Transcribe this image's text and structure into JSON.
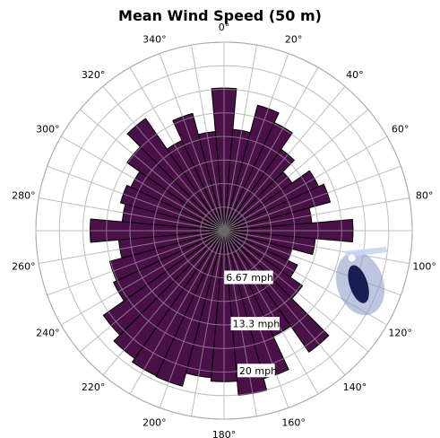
{
  "chart_data": {
    "type": "polar-bar",
    "title": "Mean Wind Speed (50 m)",
    "direction_labels": [
      "0°",
      "20°",
      "40°",
      "60°",
      "80°",
      "100°",
      "120°",
      "140°",
      "160°",
      "180°",
      "200°",
      "220°",
      "240°",
      "260°",
      "280°",
      "300°",
      "320°",
      "340°"
    ],
    "radial_axis": {
      "unit": "mph",
      "max": 26.7,
      "rings": 8,
      "labels": [
        "6.67 mph",
        "13.3 mph",
        "20 mph"
      ],
      "label_values": [
        6.67,
        13.3,
        20
      ]
    },
    "sector_width_deg": 10,
    "sectors": [
      {
        "dir": 0,
        "value": 20.2
      },
      {
        "dir": 10,
        "value": 14.4
      },
      {
        "dir": 20,
        "value": 18.4
      },
      {
        "dir": 30,
        "value": 16.9
      },
      {
        "dir": 40,
        "value": 14.1
      },
      {
        "dir": 50,
        "value": 11.8
      },
      {
        "dir": 60,
        "value": 14.8
      },
      {
        "dir": 70,
        "value": 15.6
      },
      {
        "dir": 80,
        "value": 12.5
      },
      {
        "dir": 90,
        "value": 18.3
      },
      {
        "dir": 100,
        "value": 13.0
      },
      {
        "dir": 110,
        "value": 10.0
      },
      {
        "dir": 120,
        "value": 11.5
      },
      {
        "dir": 130,
        "value": 13.6
      },
      {
        "dir": 140,
        "value": 21.0
      },
      {
        "dir": 150,
        "value": 16.5
      },
      {
        "dir": 160,
        "value": 21.7
      },
      {
        "dir": 170,
        "value": 23.4
      },
      {
        "dir": 180,
        "value": 21.4
      },
      {
        "dir": 190,
        "value": 20.9
      },
      {
        "dir": 200,
        "value": 22.8
      },
      {
        "dir": 210,
        "value": 22.7
      },
      {
        "dir": 220,
        "value": 22.1
      },
      {
        "dir": 230,
        "value": 20.9
      },
      {
        "dir": 240,
        "value": 17.3
      },
      {
        "dir": 250,
        "value": 16.8
      },
      {
        "dir": 260,
        "value": 15.0
      },
      {
        "dir": 270,
        "value": 19.0
      },
      {
        "dir": 280,
        "value": 14.5
      },
      {
        "dir": 290,
        "value": 15.2
      },
      {
        "dir": 300,
        "value": 14.6
      },
      {
        "dir": 310,
        "value": 16.8
      },
      {
        "dir": 320,
        "value": 19.4
      },
      {
        "dir": 330,
        "value": 14.1
      },
      {
        "dir": 340,
        "value": 17.2
      },
      {
        "dir": 350,
        "value": 14.1
      }
    ]
  },
  "colors": {
    "bar_fill": "#4a1148",
    "bar_stroke": "#000000",
    "grid_on_bars": "#bdbdbd",
    "grid": "#c8c8c8",
    "label_box_fill": "#ffffff"
  },
  "overlay_icon": "compass-needle-icon"
}
